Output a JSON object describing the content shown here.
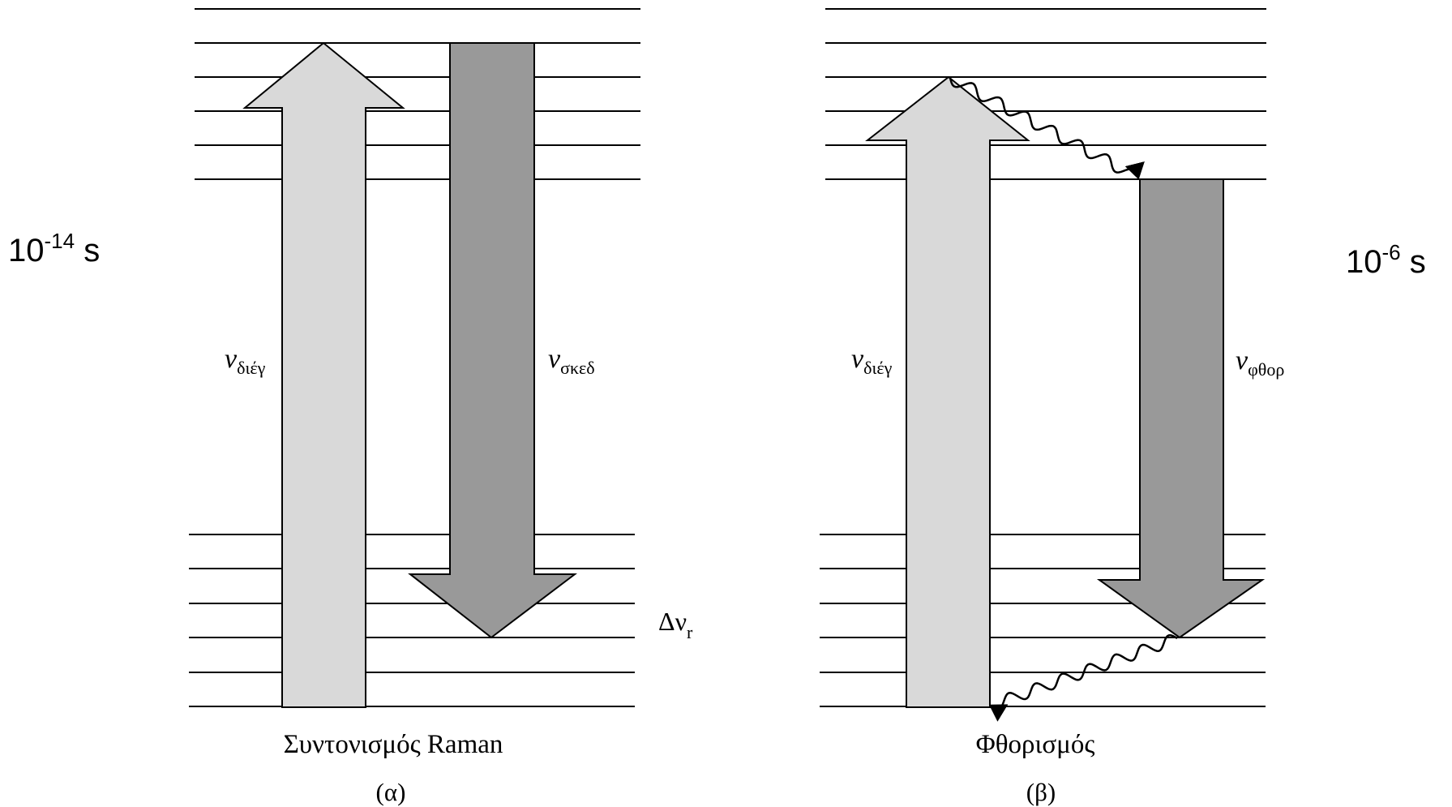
{
  "time_left": {
    "base": "10",
    "exp": "-14",
    "unit": "s"
  },
  "time_right": {
    "base": "10",
    "exp": "-6",
    "unit": "s"
  },
  "panel_a": {
    "excite_label": {
      "sym": "ν",
      "sub": "διέγ"
    },
    "scatter_label": {
      "sym": "ν",
      "sub": "σκεδ"
    },
    "delta_label": {
      "sym": "Δν",
      "sub": "r"
    },
    "title": "Συντονισμός Raman",
    "tag": "(α)"
  },
  "panel_b": {
    "excite_label": {
      "sym": "ν",
      "sub": "διέγ"
    },
    "emit_label": {
      "sym": "ν",
      "sub": "φθορ"
    },
    "title": "Φθορισμός",
    "tag": "(β)"
  },
  "colors": {
    "light_arrow": "#d9d9d9",
    "dark_arrow": "#999999",
    "line": "#000000"
  }
}
